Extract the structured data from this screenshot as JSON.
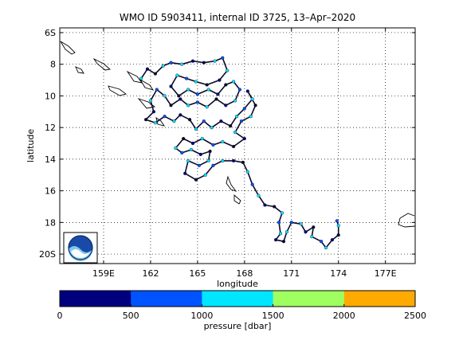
{
  "chart_data": [
    {
      "type": "scatter",
      "title": "WMO ID 5903411, internal ID 3725, 13–Apr–2020",
      "xlabel": "longitude",
      "ylabel": "latitude",
      "xlim": [
        156.2,
        178.9
      ],
      "ylim": [
        -20.6,
        -5.7
      ],
      "x_ticks": [
        159,
        162,
        165,
        168,
        171,
        174,
        177
      ],
      "x_tick_labels": [
        "159E",
        "162",
        "165",
        "168",
        "171",
        "174",
        "177E"
      ],
      "y_ticks": [
        -6,
        -8,
        -10,
        -12,
        -14,
        -16,
        -18,
        -20
      ],
      "y_tick_labels": [
        "6S",
        "8",
        "10",
        "12",
        "14",
        "16",
        "18",
        "20S"
      ],
      "grid": true,
      "series": [
        {
          "values": [
            [
              161.4,
              -8.9
            ],
            [
              161.8,
              -8.3
            ],
            [
              162.3,
              -8.6
            ],
            [
              162.8,
              -8.1
            ],
            [
              163.3,
              -7.9
            ],
            [
              164.0,
              -8.0
            ],
            [
              164.7,
              -7.8
            ],
            [
              165.4,
              -7.9
            ],
            [
              166.1,
              -7.8
            ],
            [
              166.6,
              -7.6
            ],
            [
              166.9,
              -8.4
            ],
            [
              166.4,
              -9.0
            ],
            [
              165.6,
              -9.3
            ],
            [
              164.9,
              -9.1
            ],
            [
              164.3,
              -8.9
            ],
            [
              163.7,
              -8.7
            ],
            [
              163.3,
              -9.4
            ],
            [
              163.8,
              -10.0
            ],
            [
              164.4,
              -9.6
            ],
            [
              165.0,
              -9.9
            ],
            [
              165.7,
              -9.6
            ],
            [
              166.3,
              -9.9
            ],
            [
              166.8,
              -9.3
            ],
            [
              167.3,
              -9.1
            ],
            [
              167.7,
              -9.6
            ],
            [
              167.4,
              -10.3
            ],
            [
              166.8,
              -10.6
            ],
            [
              166.2,
              -10.2
            ],
            [
              165.6,
              -10.7
            ],
            [
              165.0,
              -10.4
            ],
            [
              164.4,
              -10.6
            ],
            [
              163.9,
              -10.2
            ],
            [
              163.3,
              -10.6
            ],
            [
              162.9,
              -10.0
            ],
            [
              162.4,
              -9.6
            ],
            [
              162.0,
              -10.3
            ],
            [
              162.2,
              -11.0
            ],
            [
              161.7,
              -11.5
            ],
            [
              162.3,
              -11.7
            ],
            [
              162.9,
              -11.3
            ],
            [
              163.5,
              -11.6
            ],
            [
              163.9,
              -11.2
            ],
            [
              164.5,
              -11.5
            ],
            [
              164.9,
              -12.1
            ],
            [
              165.4,
              -11.6
            ],
            [
              165.9,
              -12.0
            ],
            [
              166.5,
              -11.6
            ],
            [
              167.1,
              -11.9
            ],
            [
              167.5,
              -11.3
            ],
            [
              168.0,
              -10.8
            ],
            [
              168.5,
              -10.2
            ],
            [
              168.2,
              -9.7
            ],
            [
              168.7,
              -10.6
            ],
            [
              168.4,
              -11.3
            ],
            [
              167.8,
              -11.6
            ],
            [
              167.4,
              -12.3
            ],
            [
              168.0,
              -12.7
            ],
            [
              167.3,
              -13.2
            ],
            [
              166.6,
              -12.9
            ],
            [
              166.0,
              -13.1
            ],
            [
              165.3,
              -12.7
            ],
            [
              164.7,
              -13.0
            ],
            [
              164.1,
              -12.7
            ],
            [
              163.6,
              -13.3
            ],
            [
              164.0,
              -13.6
            ],
            [
              164.6,
              -13.4
            ],
            [
              165.2,
              -13.7
            ],
            [
              165.8,
              -13.5
            ],
            [
              165.7,
              -14.1
            ],
            [
              165.1,
              -14.4
            ],
            [
              164.4,
              -14.1
            ],
            [
              164.2,
              -14.9
            ],
            [
              164.9,
              -15.3
            ],
            [
              165.5,
              -15.0
            ],
            [
              166.0,
              -14.4
            ],
            [
              166.6,
              -14.1
            ],
            [
              167.3,
              -14.1
            ],
            [
              167.9,
              -14.2
            ],
            [
              168.2,
              -14.8
            ],
            [
              168.5,
              -15.6
            ],
            [
              168.9,
              -16.3
            ],
            [
              169.3,
              -16.9
            ],
            [
              169.9,
              -17.0
            ],
            [
              170.4,
              -17.4
            ],
            [
              170.2,
              -18.0
            ],
            [
              170.3,
              -18.7
            ],
            [
              170.0,
              -19.1
            ],
            [
              170.5,
              -19.2
            ],
            [
              170.7,
              -18.6
            ],
            [
              171.0,
              -18.0
            ],
            [
              171.6,
              -18.1
            ],
            [
              171.9,
              -18.6
            ],
            [
              172.4,
              -18.3
            ],
            [
              172.3,
              -18.9
            ],
            [
              172.9,
              -19.2
            ],
            [
              173.2,
              -19.6
            ],
            [
              173.6,
              -19.1
            ],
            [
              174.0,
              -18.8
            ],
            [
              174.0,
              -18.2
            ],
            [
              173.9,
              -17.9
            ]
          ]
        }
      ]
    },
    {
      "type": "heatmap",
      "xlabel": "pressure [dbar]",
      "xlim": [
        0,
        2500
      ],
      "ticks": [
        0,
        500,
        1000,
        1500,
        2000,
        2500
      ],
      "colors": [
        "#00007f",
        "#0054ff",
        "#00e6ff",
        "#9fff5f",
        "#ffaa00"
      ]
    }
  ],
  "colors": {
    "track_line": "#0a0a2a",
    "track_cyan": "#00e6ff",
    "track_navy": "#00007f",
    "grid": "#000000"
  },
  "icons": {
    "logo": "noaa-logo-icon"
  }
}
